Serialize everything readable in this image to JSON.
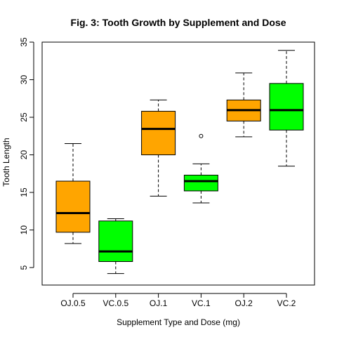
{
  "chart_data": {
    "type": "boxplot",
    "title": "Fig. 3: Tooth Growth by Supplement and Dose",
    "xlabel": "Supplement Type and Dose (mg)",
    "ylabel": "Tooth Length",
    "ylim": [
      3,
      35
    ],
    "yticks": [
      5,
      10,
      15,
      20,
      25,
      30,
      35
    ],
    "categories": [
      "OJ.0.5",
      "VC.0.5",
      "OJ.1",
      "VC.1",
      "OJ.2",
      "VC.2"
    ],
    "boxes": [
      {
        "category": "OJ.0.5",
        "min": 8.2,
        "q1": 9.7,
        "median": 12.25,
        "q3": 16.5,
        "max": 21.5,
        "outliers": [],
        "color": "#FFA500"
      },
      {
        "category": "VC.0.5",
        "min": 4.2,
        "q1": 5.8,
        "median": 7.15,
        "q3": 11.2,
        "max": 11.5,
        "outliers": [],
        "color": "#00FF00"
      },
      {
        "category": "OJ.1",
        "min": 14.5,
        "q1": 20.0,
        "median": 23.45,
        "q3": 25.8,
        "max": 27.3,
        "outliers": [],
        "color": "#FFA500"
      },
      {
        "category": "VC.1",
        "min": 13.6,
        "q1": 15.2,
        "median": 16.5,
        "q3": 17.3,
        "max": 18.8,
        "outliers": [
          22.5
        ],
        "color": "#00FF00"
      },
      {
        "category": "OJ.2",
        "min": 22.4,
        "q1": 24.5,
        "median": 25.95,
        "q3": 27.3,
        "max": 30.9,
        "outliers": [],
        "color": "#FFA500"
      },
      {
        "category": "VC.2",
        "min": 18.5,
        "q1": 23.3,
        "median": 25.95,
        "q3": 29.5,
        "max": 33.9,
        "outliers": [],
        "color": "#00FF00"
      }
    ],
    "grid": false,
    "legend": "none"
  }
}
